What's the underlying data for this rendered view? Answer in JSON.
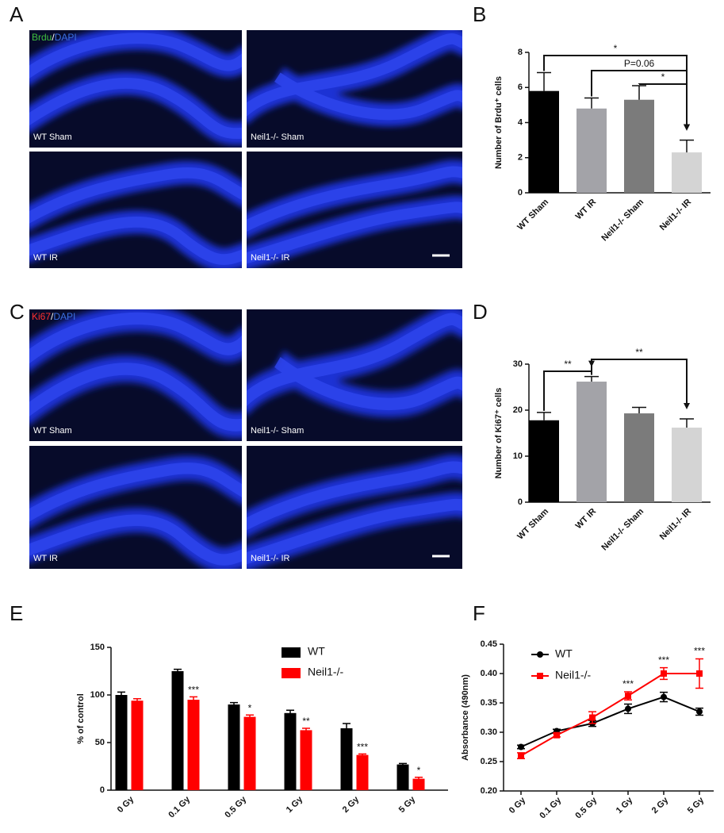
{
  "figure": {
    "letters": [
      "A",
      "B",
      "C",
      "D",
      "E",
      "F"
    ],
    "image_panels": [
      {
        "stain": [
          "Brdu",
          "/",
          "DAPI"
        ],
        "stain_colors": [
          "#3fbf3f",
          "#ffffff",
          "#3b6fe0"
        ],
        "labels": [
          "WT Sham",
          "Neil1-/- Sham",
          "WT IR",
          "Neil1-/- IR"
        ]
      },
      {
        "stain": [
          "Ki67",
          "/",
          "DAPI"
        ],
        "stain_colors": [
          "#ff3030",
          "#ffffff",
          "#3b6fe0"
        ],
        "labels": [
          "WT Sham",
          "Neil1-/- Sham",
          "WT IR",
          "Neil1-/- IR"
        ]
      }
    ]
  },
  "chart_data": [
    {
      "type": "bar",
      "ylabel": "Number of Brdu⁺ cells",
      "categories": [
        "WT Sham",
        "WT IR",
        "Neil1-/- Sham",
        "Neil1-/- IR"
      ],
      "values": [
        5.8,
        4.8,
        5.3,
        2.3
      ],
      "errors": [
        1.05,
        0.6,
        0.8,
        0.7
      ],
      "colors": [
        "#000000",
        "#a3a3a8",
        "#7b7b7b",
        "#d4d4d4"
      ],
      "ylim": [
        0,
        8
      ],
      "yticks": [
        0,
        2,
        4,
        6,
        8
      ],
      "annotations": [
        "*",
        "P=0.06",
        "*"
      ]
    },
    {
      "type": "bar",
      "ylabel": "Number of Ki67⁺ cells",
      "categories": [
        "WT Sham",
        "WT IR",
        "Neil1-/- Sham",
        "Neil1-/- IR"
      ],
      "values": [
        17.8,
        26.2,
        19.3,
        16.2
      ],
      "errors": [
        1.7,
        1.1,
        1.3,
        1.9
      ],
      "colors": [
        "#000000",
        "#a3a3a8",
        "#7b7b7b",
        "#d4d4d4"
      ],
      "ylim": [
        0,
        30
      ],
      "yticks": [
        0,
        10,
        20,
        30
      ],
      "annotations": [
        "**",
        "**"
      ]
    },
    {
      "type": "bar",
      "ylabel": "% of control",
      "categories": [
        "0 Gy",
        "0.1 Gy",
        "0.5 Gy",
        "1 Gy",
        "2 Gy",
        "5 Gy"
      ],
      "series": [
        {
          "name": "WT",
          "color": "#000000",
          "values": [
            100,
            125,
            90,
            81,
            65,
            27
          ],
          "errors": [
            3,
            2,
            2,
            3,
            5,
            1
          ]
        },
        {
          "name": "Neil1-/-",
          "color": "#ff0000",
          "values": [
            94,
            95,
            77,
            63,
            37,
            12
          ],
          "errors": [
            2,
            3,
            2,
            2,
            1,
            1.5
          ],
          "annotations": [
            null,
            "***",
            "*",
            "**",
            "***",
            "*"
          ]
        }
      ],
      "ylim": [
        0,
        150
      ],
      "yticks": [
        0,
        50,
        100,
        150
      ],
      "legend": "upper right"
    },
    {
      "type": "line",
      "ylabel": "Absorbance (490nm)",
      "categories": [
        "0 Gy",
        "0.1 Gy",
        "0.5 Gy",
        "1 Gy",
        "2 Gy",
        "5 Gy"
      ],
      "series": [
        {
          "name": "WT",
          "color": "#000000",
          "marker": "circle",
          "values": [
            0.275,
            0.302,
            0.315,
            0.34,
            0.36,
            0.335
          ],
          "errors": [
            0.003,
            0.003,
            0.005,
            0.008,
            0.008,
            0.006
          ]
        },
        {
          "name": "Neil1-/-",
          "color": "#ff0000",
          "marker": "square",
          "values": [
            0.26,
            0.295,
            0.325,
            0.362,
            0.4,
            0.4
          ],
          "errors": [
            0.005,
            0.003,
            0.01,
            0.007,
            0.01,
            0.025
          ]
        }
      ],
      "annotations": [
        null,
        null,
        null,
        "***",
        "***",
        "***"
      ],
      "ylim": [
        0.2,
        0.45
      ],
      "yticks": [
        {
          "value": 0.2,
          "label": "0.20"
        },
        {
          "value": 0.25,
          "label": "0.25"
        },
        {
          "value": 0.3,
          "label": "0.30"
        },
        {
          "value": 0.35,
          "label": "0.35"
        },
        {
          "value": 0.4,
          "label": "0.40"
        },
        {
          "value": 0.45,
          "label": "0.45"
        }
      ],
      "legend": "upper left"
    }
  ]
}
